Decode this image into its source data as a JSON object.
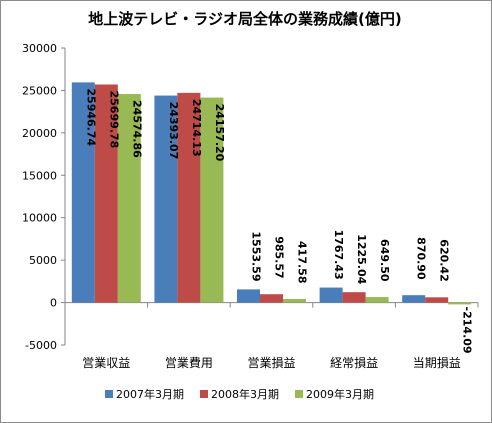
{
  "chart_data": {
    "type": "bar",
    "title": "地上波テレビ・ラジオ局全体の業務成績(億円)",
    "categories": [
      "営業収益",
      "営業費用",
      "営業損益",
      "経常損益",
      "当期損益"
    ],
    "series": [
      {
        "name": "2007年3月期",
        "color": "#4a7ebb",
        "values": [
          25946.74,
          24393.07,
          1553.59,
          1767.43,
          870.9
        ],
        "labels": [
          "25946.74",
          "24393.07",
          "1553.59",
          "1767.43",
          "870.90"
        ]
      },
      {
        "name": "2008年3月期",
        "color": "#be4b48",
        "values": [
          25699.78,
          24714.13,
          985.57,
          1225.04,
          620.42
        ],
        "labels": [
          "25699.78",
          "24714.13",
          "985.57",
          "1225.04",
          "620.42"
        ]
      },
      {
        "name": "2009年3月期",
        "color": "#98b954",
        "values": [
          24574.86,
          24157.2,
          417.58,
          649.5,
          -214.09
        ],
        "labels": [
          "24574.86",
          "24157.20",
          "417.58",
          "649.50",
          "-214.09"
        ]
      }
    ],
    "ylim": [
      -5000,
      30000
    ],
    "yticks": [
      "-5000",
      "0",
      "5000",
      "10000",
      "15000",
      "20000",
      "25000",
      "30000"
    ],
    "grid": false,
    "legend_position": "bottom"
  }
}
